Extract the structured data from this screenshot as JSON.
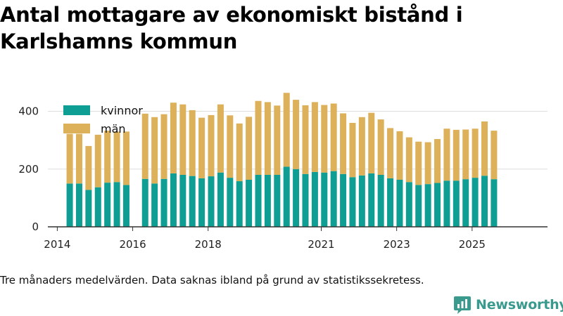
{
  "title": "Antal mottagare av ekonomiskt bistånd i Karlshamns kommun",
  "note": "Tre månaders medelvärden. Data saknas ibland på grund av statistikssekretess.",
  "brand": {
    "name": "Newsworthy",
    "icon": "newsworthy-logo-icon"
  },
  "colors": {
    "kvinnor": "#0f9e93",
    "man": "#ddb05a",
    "grid": "#dddddd",
    "axis": "#333333"
  },
  "chart_data": {
    "type": "bar",
    "stacked": true,
    "title": "Antal mottagare av ekonomiskt bistånd i Karlshamns kommun",
    "xlabel": "",
    "ylabel": "",
    "ylim": [
      0,
      450
    ],
    "xlim": [
      2013.75,
      2027.0
    ],
    "yticks": [
      0,
      200,
      400
    ],
    "xticks": [
      {
        "value": 2014.0,
        "label": "2014"
      },
      {
        "value": 2016.0,
        "label": "2016"
      },
      {
        "value": 2018.0,
        "label": "2018"
      },
      {
        "value": 2021.0,
        "label": "2021"
      },
      {
        "value": 2023.0,
        "label": "2023"
      },
      {
        "value": 2025.0,
        "label": "2025"
      }
    ],
    "legend": "top-left",
    "x": [
      2014.33,
      2014.58,
      2014.83,
      2015.08,
      2015.33,
      2015.58,
      2015.83,
      2016.33,
      2016.58,
      2016.83,
      2017.08,
      2017.33,
      2017.58,
      2017.83,
      2018.08,
      2018.33,
      2018.58,
      2018.83,
      2019.08,
      2019.33,
      2019.58,
      2019.83,
      2020.08,
      2020.33,
      2020.58,
      2020.83,
      2021.08,
      2021.33,
      2021.58,
      2021.83,
      2022.08,
      2022.33,
      2022.58,
      2022.83,
      2023.08,
      2023.33,
      2023.58,
      2023.83,
      2024.08,
      2024.33,
      2024.58,
      2024.83,
      2025.08,
      2025.33,
      2025.58
    ],
    "series": [
      {
        "name": "kvinnor",
        "color": "#0f9e93",
        "values": [
          150,
          150,
          128,
          137,
          153,
          155,
          145,
          166,
          150,
          166,
          185,
          180,
          176,
          168,
          175,
          188,
          170,
          158,
          163,
          180,
          180,
          180,
          208,
          200,
          183,
          190,
          188,
          193,
          183,
          172,
          178,
          185,
          180,
          168,
          163,
          155,
          145,
          148,
          152,
          160,
          160,
          165,
          170,
          177,
          165
        ]
      },
      {
        "name": "män",
        "color": "#ddb05a",
        "values": [
          172,
          172,
          152,
          182,
          180,
          175,
          185,
          226,
          230,
          224,
          245,
          244,
          228,
          210,
          212,
          236,
          216,
          200,
          218,
          256,
          252,
          240,
          256,
          240,
          238,
          242,
          234,
          234,
          210,
          188,
          202,
          210,
          192,
          174,
          168,
          155,
          150,
          145,
          152,
          180,
          176,
          172,
          170,
          188,
          168
        ]
      }
    ]
  }
}
